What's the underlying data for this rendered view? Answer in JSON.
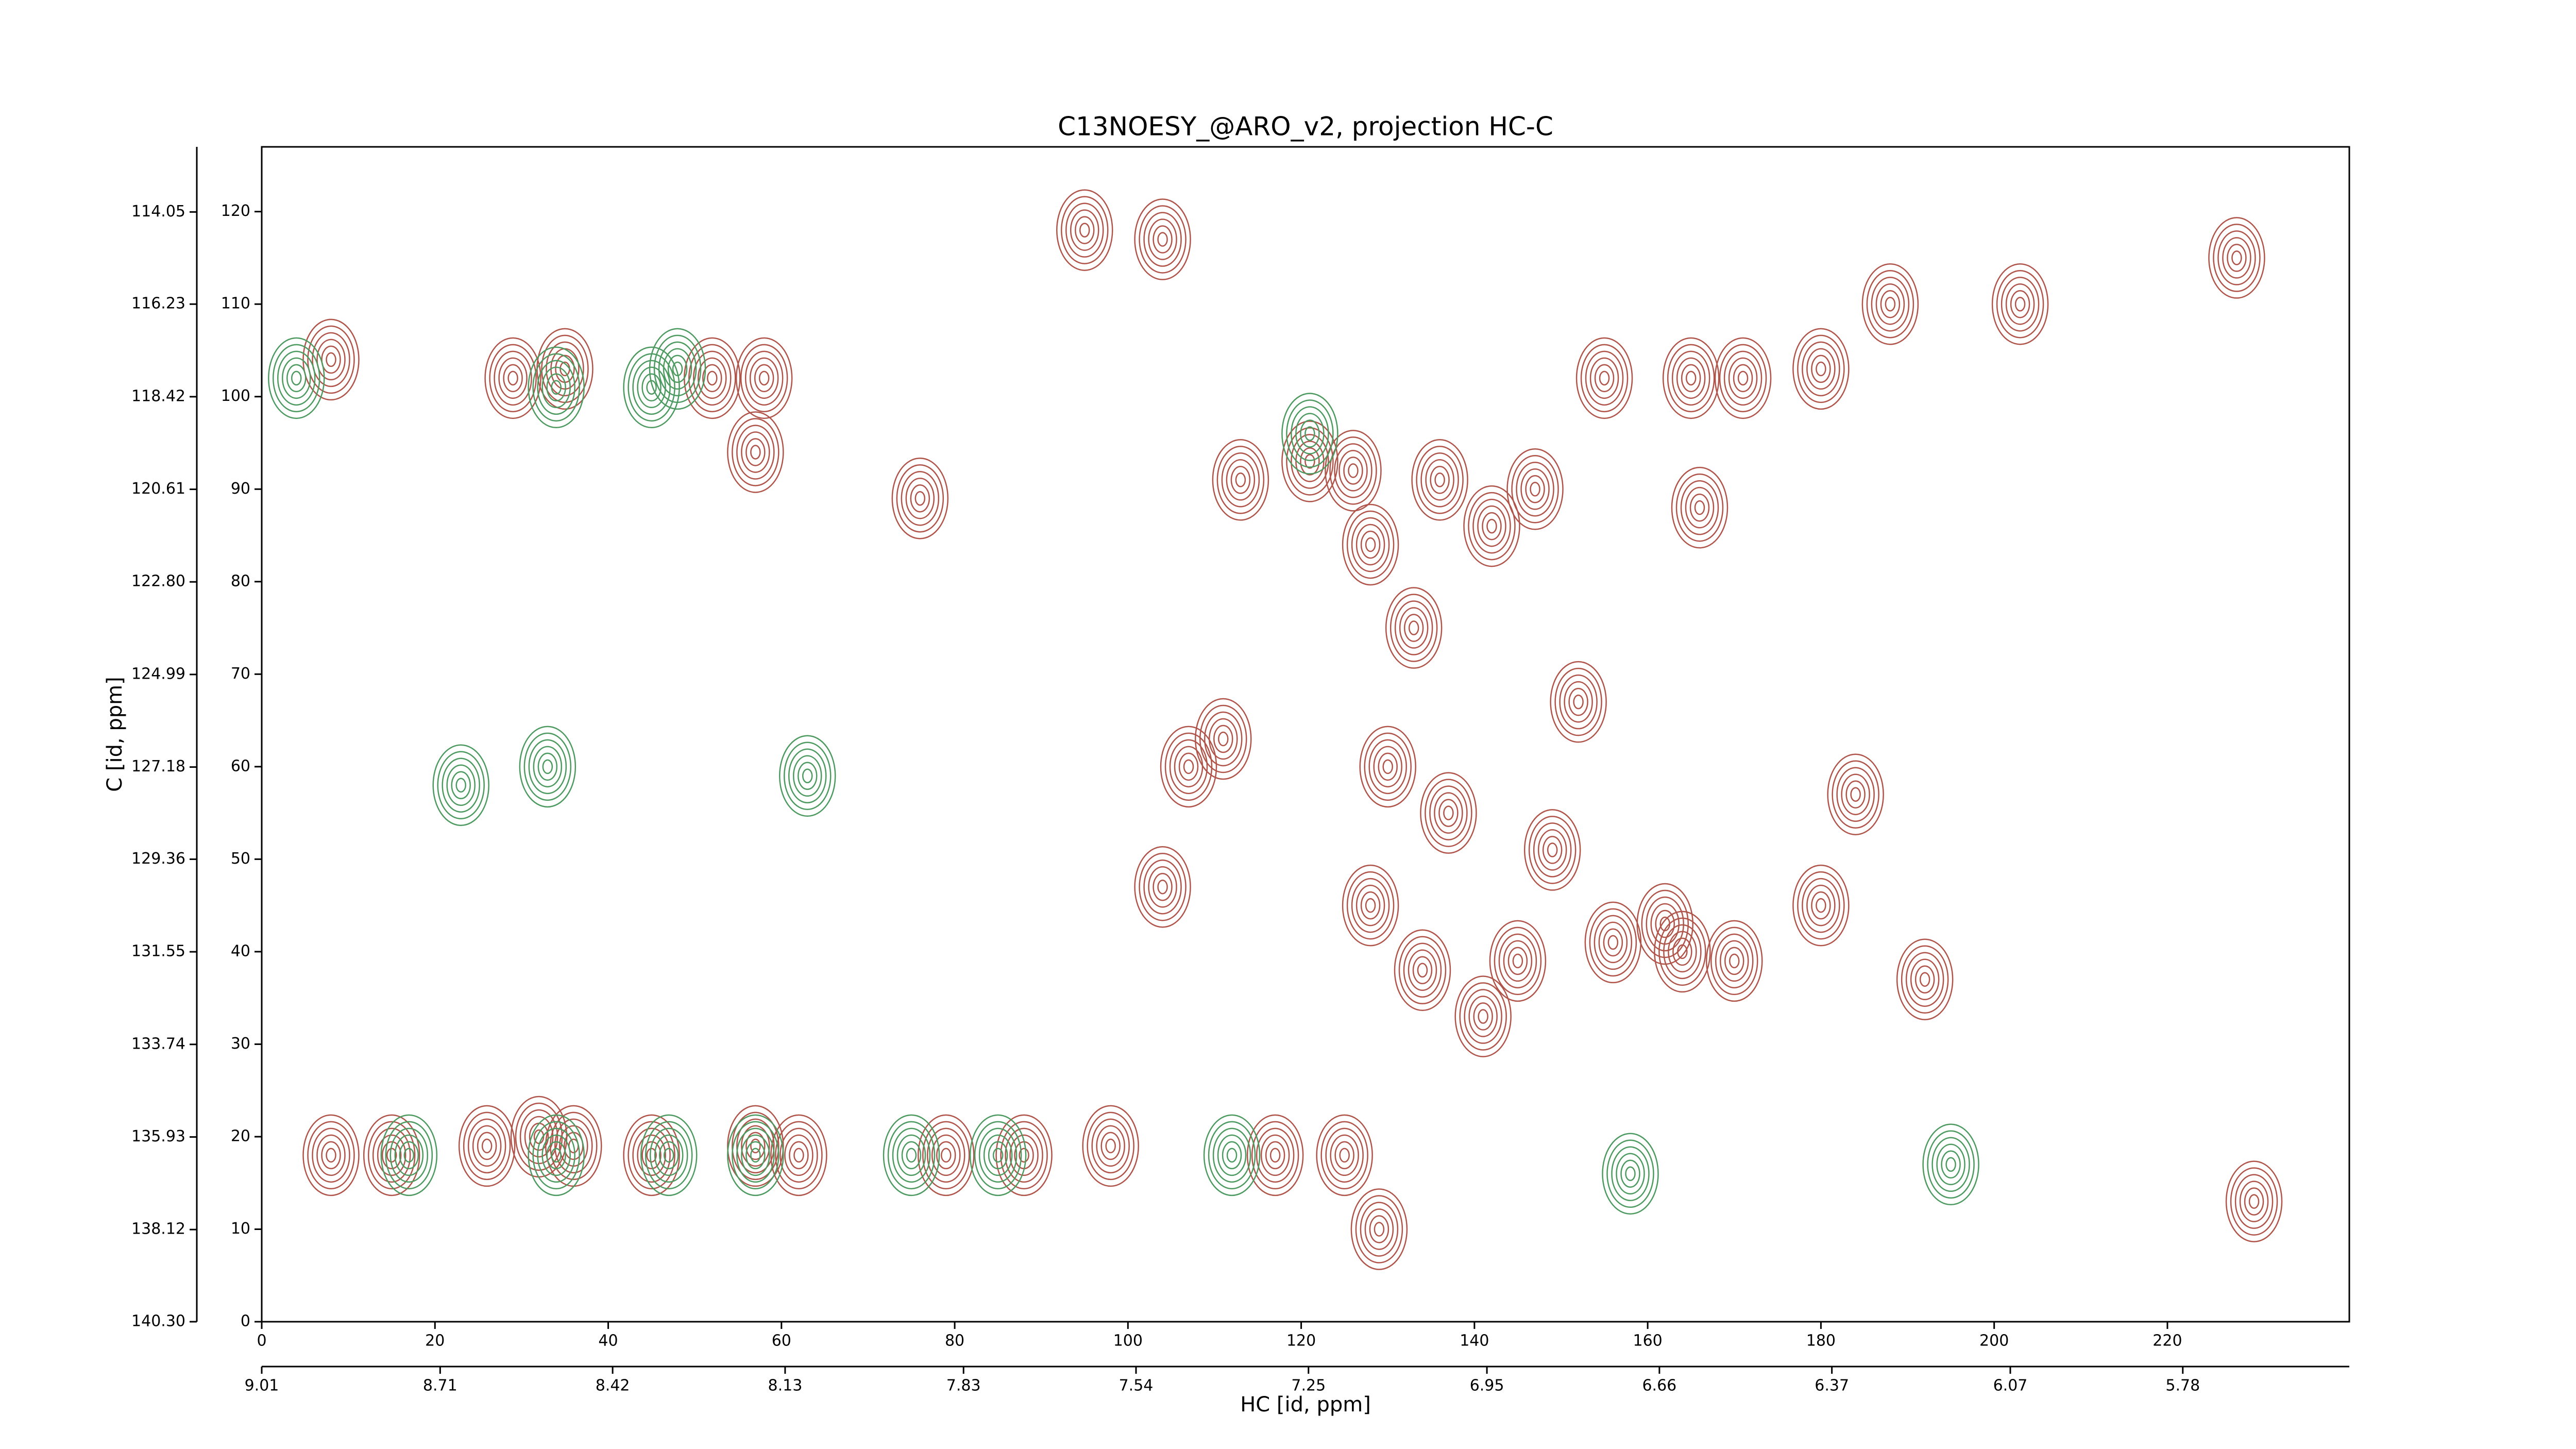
{
  "chart_data": {
    "type": "contour",
    "title": "C13NOESY_@ARO_v2, projection HC-C",
    "xlabel": "HC [id, ppm]",
    "ylabel": "C [id, ppm]",
    "xlim": [
      0,
      241
    ],
    "ylim": [
      0,
      127
    ],
    "xticks": [
      0,
      20,
      40,
      60,
      80,
      100,
      120,
      140,
      160,
      180,
      200,
      220
    ],
    "yticks": [
      0,
      10,
      20,
      30,
      40,
      50,
      60,
      70,
      80,
      90,
      100,
      110,
      120
    ],
    "x2lim": [
      9.01,
      5.5
    ],
    "x2ticks": [
      9.01,
      8.71,
      8.42,
      8.13,
      7.83,
      7.54,
      7.25,
      6.95,
      6.66,
      6.37,
      6.07,
      5.78
    ],
    "y2lim": [
      140.3,
      112.51
    ],
    "y2ticks": [
      {
        "value": 140.3,
        "label": "140.30"
      },
      138.12,
      135.93,
      133.74,
      131.55,
      129.36,
      127.18,
      124.99,
      {
        "value": 122.8,
        "label": "122.80"
      },
      120.61,
      118.42,
      116.23,
      114.05
    ],
    "series": [
      {
        "color": "#b0544a",
        "x": [
          8,
          15,
          26,
          32,
          36,
          45,
          57,
          62,
          79,
          88,
          98,
          117,
          125,
          8,
          29,
          35,
          52,
          58,
          76,
          57,
          95,
          104,
          107,
          111,
          104,
          113,
          121,
          126,
          128,
          133,
          130,
          128,
          134,
          137,
          141,
          145,
          149,
          156,
          152,
          162,
          164,
          170,
          180,
          184,
          192,
          129,
          230,
          155,
          165,
          171,
          180,
          188,
          203,
          228,
          147,
          166,
          136,
          142
        ],
        "y": [
          18,
          18,
          19,
          20,
          19,
          18,
          19,
          18,
          18,
          18,
          19,
          18,
          18,
          104,
          102,
          103,
          102,
          102,
          89,
          94,
          118,
          117,
          60,
          63,
          47,
          91,
          93,
          92,
          84,
          75,
          60,
          45,
          38,
          55,
          33,
          39,
          51,
          41,
          67,
          43,
          40,
          39,
          45,
          57,
          37,
          10,
          13,
          102,
          102,
          102,
          103,
          110,
          110,
          115,
          90,
          88,
          91,
          86
        ]
      },
      {
        "color": "#4c9a5f",
        "x": [
          4,
          34,
          45,
          17,
          34,
          47,
          57,
          75,
          85,
          112,
          158,
          195,
          48,
          23,
          33,
          63,
          121
        ],
        "y": [
          102,
          101,
          101,
          18,
          18,
          18,
          18,
          18,
          18,
          18,
          16,
          17,
          103,
          58,
          60,
          59,
          96
        ]
      }
    ]
  }
}
